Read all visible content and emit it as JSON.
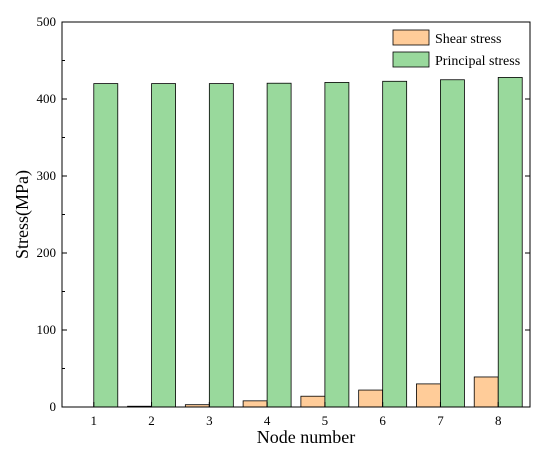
{
  "chart_data": {
    "type": "bar",
    "categories": [
      "1",
      "2",
      "3",
      "4",
      "5",
      "6",
      "7",
      "8"
    ],
    "series": [
      {
        "name": "Shear stress",
        "color": "#FFCC99",
        "values": [
          0,
          1,
          3,
          8,
          14,
          22,
          30,
          39
        ]
      },
      {
        "name": "Principal stress",
        "color": "#99D99C",
        "values": [
          420,
          420,
          420,
          420.5,
          421.5,
          423,
          425,
          428
        ]
      }
    ],
    "xlabel": "Node number",
    "ylabel": "Stress(MPa)",
    "ylim": [
      0,
      500
    ],
    "yticks": [
      0,
      100,
      200,
      300,
      400,
      500
    ],
    "legend_position": "top-right",
    "grid": false
  }
}
